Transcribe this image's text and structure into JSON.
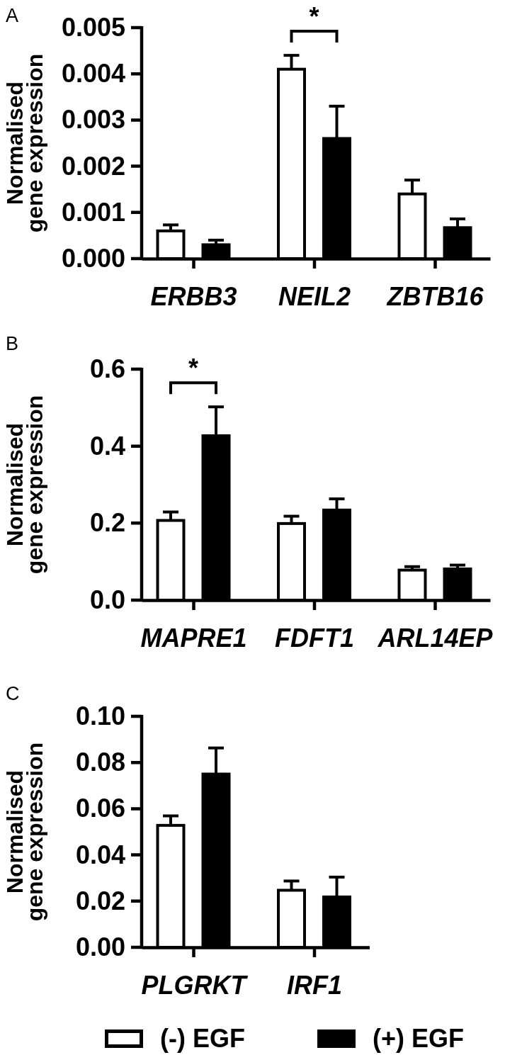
{
  "chart_data": [
    {
      "type": "bar",
      "title": "A",
      "ylabel": "Normalised gene expression",
      "categories": [
        "ERBB3",
        "NEIL2",
        "ZBTB16"
      ],
      "series": [
        {
          "color": "#ffffff",
          "values": [
            0.0006,
            0.0041,
            0.0014
          ],
          "errors": [
            [
              0.0006,
              0.00073
            ],
            [
              0.0041,
              0.0044
            ],
            [
              0.0014,
              0.0017
            ]
          ]
        },
        {
          "color": "#000000",
          "values": [
            0.0003,
            0.0026,
            0.00067
          ],
          "errors": [
            [
              0.0003,
              0.0004
            ],
            [
              0.0026,
              0.0033
            ],
            [
              0.00067,
              0.00086
            ]
          ]
        }
      ],
      "ylim": [
        0,
        0.005
      ],
      "yticks": [
        {
          "value": 0,
          "label": "0.000"
        },
        {
          "value": 0.001,
          "label": "0.001"
        },
        {
          "value": 0.002,
          "label": "0.002"
        },
        {
          "value": 0.003,
          "label": "0.003"
        },
        {
          "value": 0.004,
          "label": "0.004"
        },
        {
          "value": 0.005,
          "label": "0.005"
        }
      ],
      "annotations": [
        "*"
      ]
    },
    {
      "type": "bar",
      "title": "B",
      "ylabel": "Normalised gene expression",
      "categories": [
        "MAPRE1",
        "FDFT1",
        "ARL14EP"
      ],
      "series": [
        {
          "color": "#ffffff",
          "values": [
            0.207,
            0.199,
            0.078
          ],
          "errors": [
            [
              0.207,
              0.229
            ],
            [
              0.199,
              0.218
            ],
            [
              0.078,
              0.087
            ]
          ]
        },
        {
          "color": "#000000",
          "values": [
            0.427,
            0.234,
            0.081
          ],
          "errors": [
            [
              0.427,
              0.502
            ],
            [
              0.234,
              0.263
            ],
            [
              0.081,
              0.091
            ]
          ]
        }
      ],
      "ylim": [
        0,
        0.6
      ],
      "yticks": [
        {
          "value": 0,
          "label": "0.0"
        },
        0.2,
        0.4,
        0.6
      ],
      "annotations": [
        "*"
      ]
    },
    {
      "type": "bar",
      "title": "C",
      "ylabel": "Normalised gene expression",
      "categories": [
        "PLGRKT",
        "IRF1"
      ],
      "series": [
        {
          "name": "(-) EGF",
          "color": "#ffffff",
          "values": [
            0.0528,
            0.0247
          ],
          "errors": [
            [
              0.0528,
              0.0569
            ],
            [
              0.0247,
              0.0287
            ]
          ]
        },
        {
          "name": "(+) EGF",
          "color": "#000000",
          "values": [
            0.075,
            0.0218
          ],
          "errors": [
            [
              0.075,
              0.0863
            ],
            [
              0.0218,
              0.0304
            ]
          ]
        }
      ],
      "ylim": [
        0,
        0.1
      ],
      "yticks": [
        {
          "value": 0,
          "label": "0.00"
        },
        {
          "value": 0.02,
          "label": "0.02"
        },
        {
          "value": 0.04,
          "label": "0.04"
        },
        {
          "value": 0.06,
          "label": "0.06"
        },
        {
          "value": 0.08,
          "label": "0.08"
        },
        {
          "value": 0.1,
          "label": "0.10"
        }
      ],
      "legend": "bottom"
    }
  ]
}
